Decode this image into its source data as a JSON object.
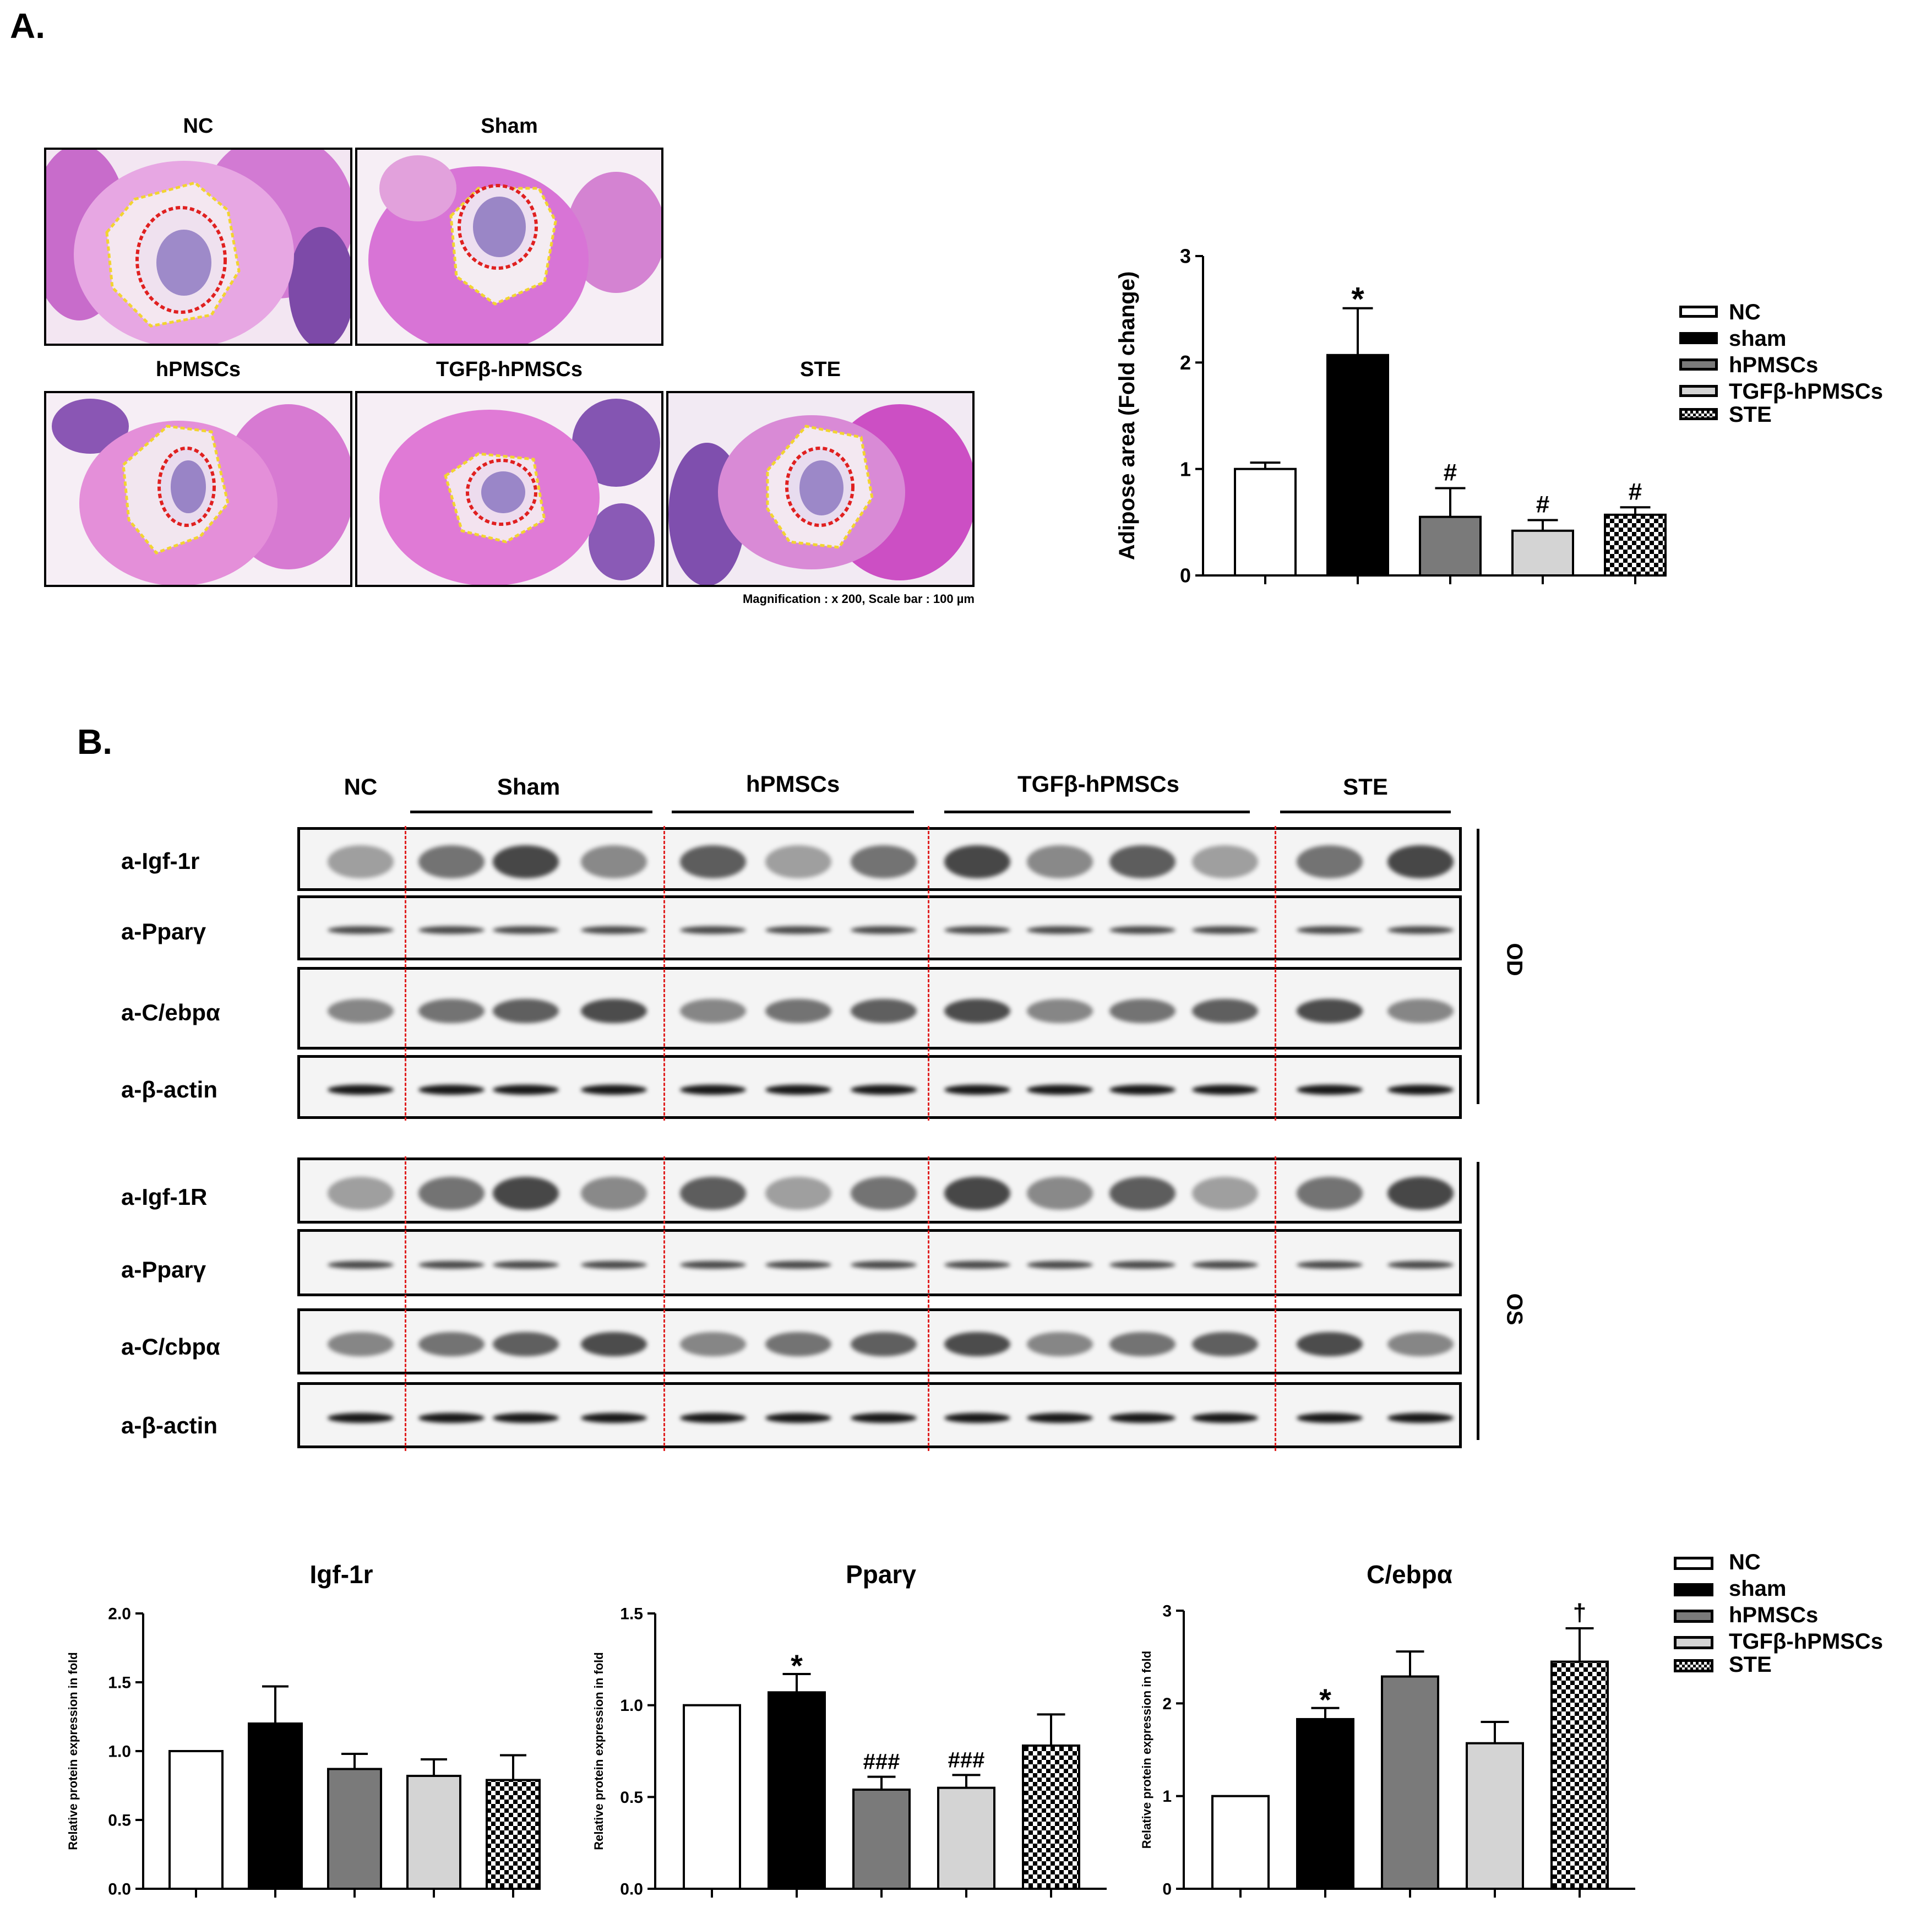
{
  "panel_a_label": "A.",
  "panel_b_label": "B.",
  "histology": {
    "caption": "Magnification : x 200, Scale bar : 100 µm",
    "panels": [
      {
        "title": "NC"
      },
      {
        "title": "Sham"
      },
      {
        "title": "hPMSCs"
      },
      {
        "title": "TGFβ-hPMSCs"
      },
      {
        "title": "STE"
      }
    ]
  },
  "legend_a": [
    "NC",
    "sham",
    "hPMSCs",
    "TGFβ-hPMSCs",
    "STE"
  ],
  "legend_b": [
    "NC",
    "sham",
    "hPMSCs",
    "TGFβ-hPMSCs",
    "STE"
  ],
  "western": {
    "groups": [
      "NC",
      "Sham",
      "hPMSCs",
      "TGFβ-hPMSCs",
      "STE"
    ],
    "od_label": "OD",
    "os_label": "OS",
    "od_rows": [
      "a-Igf-1r",
      "a-Pparγ",
      "a-C/ebpα",
      "a-β-actin"
    ],
    "os_rows": [
      "a-Igf-1R",
      "a-Pparγ",
      "a-C/cbpα",
      "a-β-actin"
    ]
  },
  "colors": {
    "NC": "#ffffff",
    "sham": "#000000",
    "hPMSCs": "#7a7a7a",
    "TGFb-hPMSCs": "#d4d4d4",
    "STE": "checker",
    "divider": "#e02020",
    "histology_pink": "#d65ad0"
  },
  "chart_data": [
    {
      "id": "adipose",
      "type": "bar",
      "title": "",
      "ylabel": "Adipose area (Fold change)",
      "xlabel": "",
      "categories": [
        "NC",
        "sham",
        "hPMSCs",
        "TGFβ-hPMSCs",
        "STE"
      ],
      "values": [
        1.0,
        2.07,
        0.55,
        0.42,
        0.57
      ],
      "errors": [
        0.06,
        0.44,
        0.27,
        0.1,
        0.07
      ],
      "annotations": [
        "",
        "*",
        "#",
        "#",
        "#"
      ],
      "ylim": [
        0,
        3
      ],
      "yticks": [
        "0",
        "1",
        "2",
        "3"
      ]
    },
    {
      "id": "igf1r",
      "type": "bar",
      "title": "Igf-1r",
      "ylabel": "Relative protein expression in fold",
      "xlabel": "",
      "categories": [
        "NC",
        "sham",
        "hPMSCs",
        "TGFβ-hPMSCs",
        "STE"
      ],
      "values": [
        1.0,
        1.2,
        0.87,
        0.82,
        0.79
      ],
      "errors": [
        0.0,
        0.27,
        0.11,
        0.12,
        0.18
      ],
      "annotations": [
        "",
        "",
        "",
        "",
        ""
      ],
      "ylim": [
        0,
        2.0
      ],
      "yticks": [
        "0.0",
        "0.5",
        "1.0",
        "1.5",
        "2.0"
      ]
    },
    {
      "id": "ppary",
      "type": "bar",
      "title": "Pparγ",
      "ylabel": "Relative protein expression in fold",
      "xlabel": "",
      "categories": [
        "NC",
        "sham",
        "hPMSCs",
        "TGFβ-hPMSCs",
        "STE"
      ],
      "values": [
        1.0,
        1.07,
        0.54,
        0.55,
        0.78
      ],
      "errors": [
        0.0,
        0.1,
        0.07,
        0.07,
        0.17
      ],
      "annotations": [
        "",
        "*",
        "###",
        "###",
        ""
      ],
      "ylim": [
        0,
        1.5
      ],
      "yticks": [
        "0.0",
        "0.5",
        "1.0",
        "1.5"
      ]
    },
    {
      "id": "cebpa",
      "type": "bar",
      "title": "C/ebpα",
      "ylabel": "Relative protein expression in fold",
      "xlabel": "",
      "categories": [
        "NC",
        "sham",
        "hPMSCs",
        "TGFβ-hPMSCs",
        "STE"
      ],
      "values": [
        1.0,
        1.83,
        2.29,
        1.57,
        2.45
      ],
      "errors": [
        0.0,
        0.12,
        0.27,
        0.23,
        0.36
      ],
      "annotations": [
        "",
        "*",
        "",
        "",
        "†"
      ],
      "ylim": [
        0,
        3
      ],
      "yticks": [
        "0",
        "1",
        "2",
        "3"
      ]
    }
  ]
}
